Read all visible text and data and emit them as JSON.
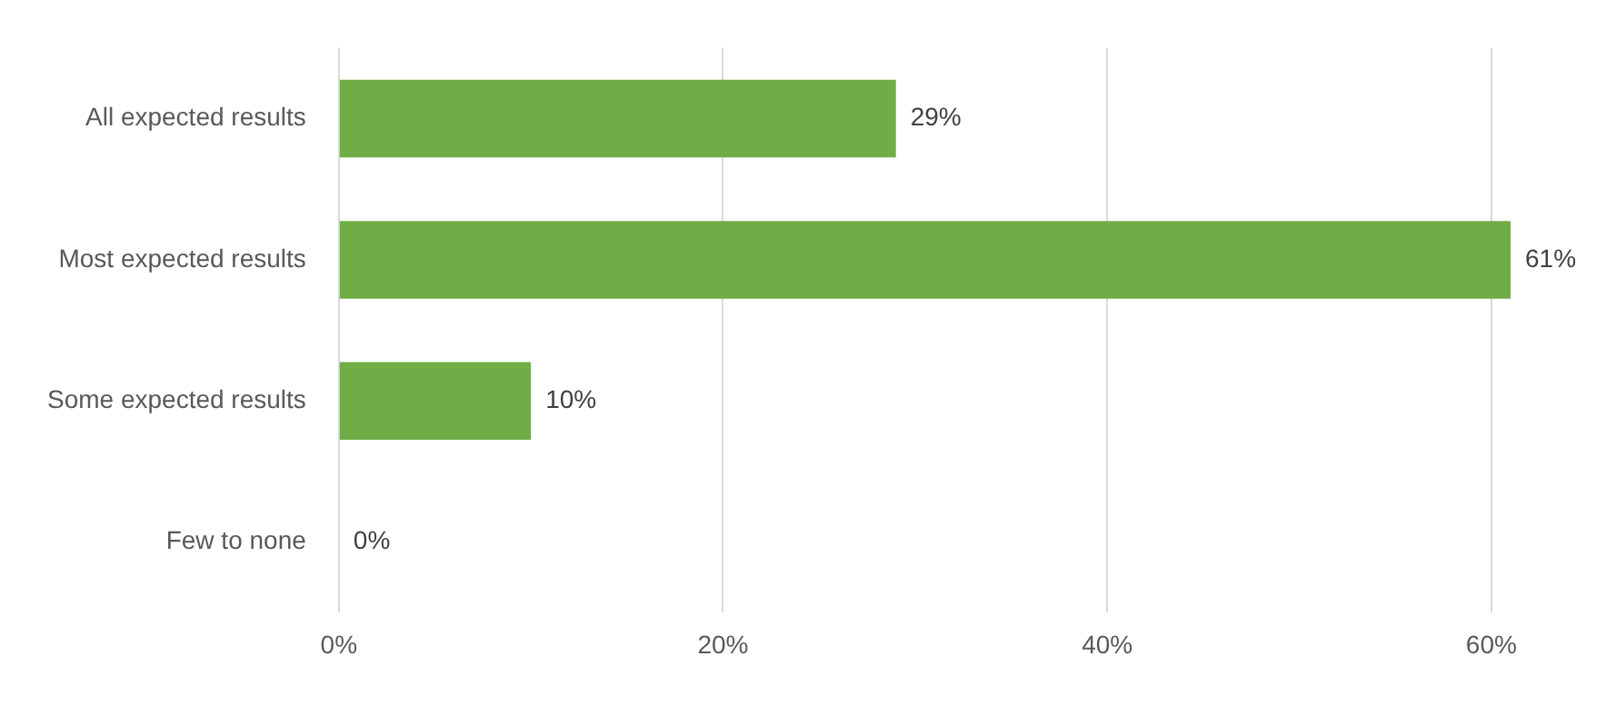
{
  "chart_data": {
    "type": "bar",
    "orientation": "horizontal",
    "categories": [
      "All expected results",
      "Most expected results",
      "Some expected results",
      "Few to none"
    ],
    "values": [
      29,
      61,
      10,
      0
    ],
    "value_labels": [
      "29%",
      "61%",
      "10%",
      "0%"
    ],
    "color": "#70ad47",
    "xlim": [
      0,
      61
    ],
    "xticks": [
      {
        "value": 0,
        "label": "0%"
      },
      {
        "value": 20,
        "label": "20%"
      },
      {
        "value": 40,
        "label": "40%"
      },
      {
        "value": 60,
        "label": "60%"
      }
    ],
    "grid": "x",
    "legend": false
  }
}
